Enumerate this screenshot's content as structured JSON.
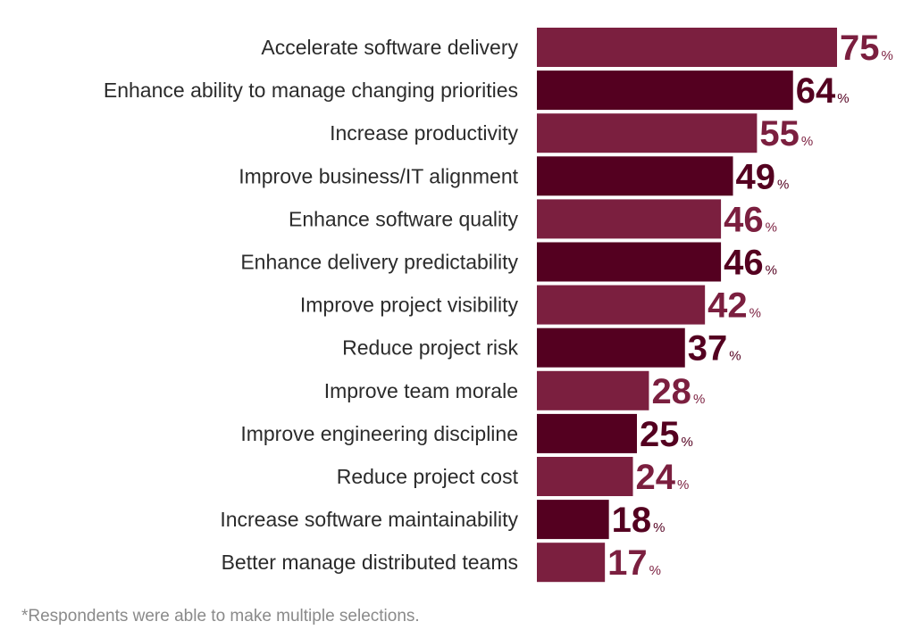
{
  "chart_data": {
    "type": "bar",
    "orientation": "horizontal",
    "categories": [
      "Accelerate software delivery",
      "Enhance ability to manage changing priorities",
      "Increase productivity",
      "Improve business/IT alignment",
      "Enhance software quality",
      "Enhance delivery predictability",
      "Improve project visibility",
      "Reduce project risk",
      "Improve team morale",
      "Improve engineering discipline",
      "Reduce project cost",
      "Increase software maintainability",
      "Better manage distributed teams"
    ],
    "values": [
      75,
      64,
      55,
      49,
      46,
      46,
      42,
      37,
      28,
      25,
      24,
      18,
      17
    ],
    "value_suffix": "%",
    "xlim": [
      0,
      75
    ],
    "grid": false,
    "legend": "none",
    "colors": {
      "light": "#7b1f3f",
      "dark": "#540020"
    }
  },
  "footnote": "*Respondents were able to make multiple selections."
}
